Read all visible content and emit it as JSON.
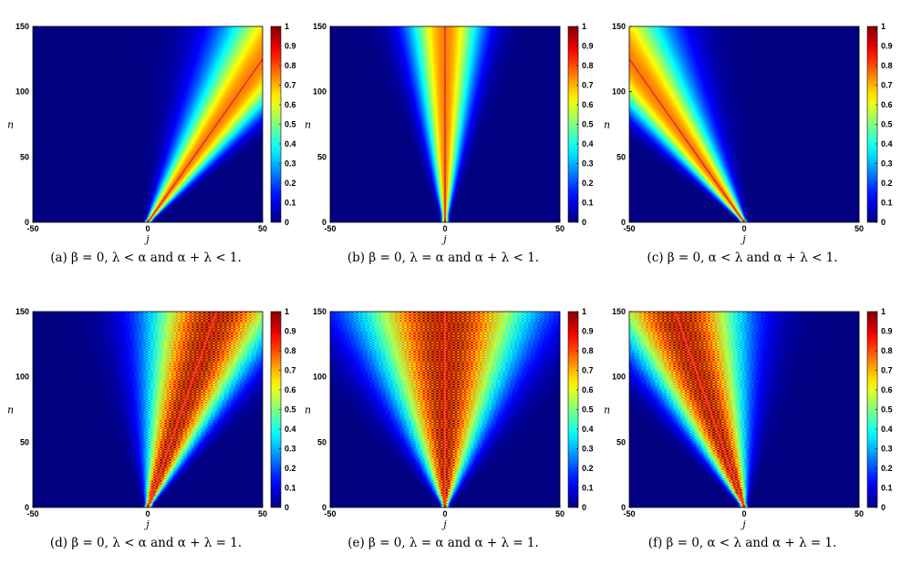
{
  "figure": {
    "panels": [
      {
        "label": "(a)",
        "caption": "(a) β = 0, λ < α and α + λ < 1."
      },
      {
        "label": "(b)",
        "caption": "(b) β = 0, λ = α and α + λ < 1."
      },
      {
        "label": "(c)",
        "caption": "(c) β = 0, α < λ and α + λ < 1."
      },
      {
        "label": "(d)",
        "caption": "(d) β = 0, λ < α and α + λ = 1."
      },
      {
        "label": "(e)",
        "caption": "(e) β = 0, λ = α and α + λ = 1."
      },
      {
        "label": "(f)",
        "caption": "(f) β = 0, α < λ and α + λ = 1."
      }
    ]
  },
  "chart_data": [
    {
      "type": "heatmap",
      "title": "(a) β = 0, λ < α and α + λ < 1.",
      "xlabel": "j",
      "ylabel": "n",
      "xlim": [
        -50,
        50
      ],
      "ylim": [
        0,
        150
      ],
      "xticks": [
        "-50",
        "0",
        "50"
      ],
      "yticks": [
        "0",
        "50",
        "100",
        "150"
      ],
      "colorbar": {
        "range": [
          0,
          1
        ],
        "ticks": [
          "0",
          "0.1",
          "0.2",
          "0.3",
          "0.4",
          "0.5",
          "0.6",
          "0.7",
          "0.8",
          "0.9",
          "1"
        ],
        "colormap": "jet"
      },
      "line": {
        "x": [
          0,
          50
        ],
        "y": [
          0,
          125
        ],
        "color": "#d9402f"
      },
      "drift": 0.4,
      "spread": 0.12,
      "checker": false
    },
    {
      "type": "heatmap",
      "title": "(b) β = 0, λ = α and α + λ < 1.",
      "xlabel": "j",
      "ylabel": "n",
      "xlim": [
        -50,
        50
      ],
      "ylim": [
        0,
        150
      ],
      "xticks": [
        "-50",
        "0",
        "50"
      ],
      "yticks": [
        "0",
        "50",
        "100",
        "150"
      ],
      "colorbar": {
        "range": [
          0,
          1
        ],
        "ticks": [
          "0",
          "0.1",
          "0.2",
          "0.3",
          "0.4",
          "0.5",
          "0.6",
          "0.7",
          "0.8",
          "0.9",
          "1"
        ],
        "colormap": "jet"
      },
      "line": {
        "x": [
          0,
          0
        ],
        "y": [
          0,
          150
        ],
        "color": "#d9402f"
      },
      "drift": 0,
      "spread": 0.07,
      "checker": false
    },
    {
      "type": "heatmap",
      "title": "(c) β = 0, α < λ and α + λ < 1.",
      "xlabel": "j",
      "ylabel": "n",
      "xlim": [
        -50,
        50
      ],
      "ylim": [
        0,
        150
      ],
      "xticks": [
        "-50",
        "0",
        "50"
      ],
      "yticks": [
        "0",
        "50",
        "100",
        "150"
      ],
      "colorbar": {
        "range": [
          0,
          1
        ],
        "ticks": [
          "0",
          "0.1",
          "0.2",
          "0.3",
          "0.4",
          "0.5",
          "0.6",
          "0.7",
          "0.8",
          "0.9",
          "1"
        ],
        "colormap": "jet"
      },
      "line": {
        "x": [
          0,
          -50
        ],
        "y": [
          0,
          125
        ],
        "color": "#d9402f"
      },
      "drift": -0.4,
      "spread": 0.12,
      "checker": false
    },
    {
      "type": "heatmap",
      "title": "(d) β = 0, λ < α and α + λ = 1.",
      "xlabel": "j",
      "ylabel": "n",
      "xlim": [
        -50,
        50
      ],
      "ylim": [
        0,
        150
      ],
      "xticks": [
        "-50",
        "0",
        "50"
      ],
      "yticks": [
        "0",
        "50",
        "100",
        "150"
      ],
      "colorbar": {
        "range": [
          0,
          1
        ],
        "ticks": [
          "0",
          "0.1",
          "0.2",
          "0.3",
          "0.4",
          "0.5",
          "0.6",
          "0.7",
          "0.8",
          "0.9",
          "1"
        ],
        "colormap": "jet"
      },
      "line": {
        "x": [
          0,
          30
        ],
        "y": [
          0,
          150
        ],
        "color": "#ff3b3b"
      },
      "drift": 0.2,
      "spread": 0.13,
      "checker": true
    },
    {
      "type": "heatmap",
      "title": "(e) β = 0, λ = α and α + λ = 1.",
      "xlabel": "j",
      "ylabel": "n",
      "xlim": [
        -50,
        50
      ],
      "ylim": [
        0,
        150
      ],
      "xticks": [
        "-50",
        "0",
        "50"
      ],
      "yticks": [
        "0",
        "50",
        "100",
        "150"
      ],
      "colorbar": {
        "range": [
          0,
          1
        ],
        "ticks": [
          "0",
          "0.1",
          "0.2",
          "0.3",
          "0.4",
          "0.5",
          "0.6",
          "0.7",
          "0.8",
          "0.9",
          "1"
        ],
        "colormap": "jet"
      },
      "line": {
        "x": [
          0,
          0
        ],
        "y": [
          0,
          150
        ],
        "color": "#ff3b3b"
      },
      "drift": 0,
      "spread": 0.17,
      "checker": true
    },
    {
      "type": "heatmap",
      "title": "(f) β = 0, α < λ and α + λ = 1.",
      "xlabel": "j",
      "ylabel": "n",
      "xlim": [
        -50,
        50
      ],
      "ylim": [
        0,
        150
      ],
      "xticks": [
        "-50",
        "0",
        "50"
      ],
      "yticks": [
        "0",
        "50",
        "100",
        "150"
      ],
      "colorbar": {
        "range": [
          0,
          1
        ],
        "ticks": [
          "0",
          "0.1",
          "0.2",
          "0.3",
          "0.4",
          "0.5",
          "0.6",
          "0.7",
          "0.8",
          "0.9",
          "1"
        ],
        "colormap": "jet"
      },
      "line": {
        "x": [
          0,
          -30
        ],
        "y": [
          0,
          150
        ],
        "color": "#ff3b3b"
      },
      "drift": -0.2,
      "spread": 0.13,
      "checker": true
    }
  ]
}
